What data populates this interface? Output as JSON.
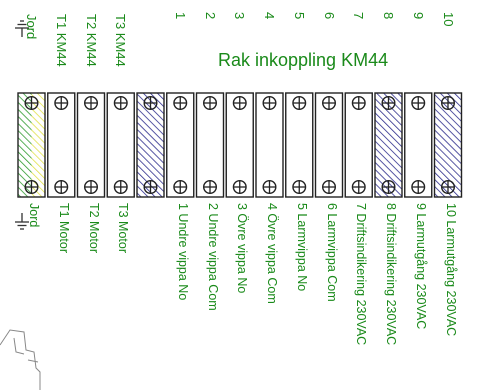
{
  "title": "Rak inkoppling KM44",
  "colors": {
    "text": "#1a8a1a",
    "outline": "#222222",
    "hatch_blue": "#2c2c8c",
    "hatch_green": "#2e9a2e",
    "hatch_yellow": "#e2e24a",
    "ground": "#333333"
  },
  "terminals": [
    {
      "top": "Jord",
      "bottom": "Jord",
      "ground": true,
      "fill": "green-yellow"
    },
    {
      "top": "T1 KM44",
      "bottom": "T1 Motor",
      "fill": "none"
    },
    {
      "top": "T2 KM44",
      "bottom": "T2 Motor",
      "fill": "none"
    },
    {
      "top": "T3 KM44",
      "bottom": "T3 Motor",
      "fill": "none"
    },
    {
      "top": "",
      "bottom": "",
      "fill": "blue"
    },
    {
      "top": "1",
      "bottom": "1 Undre vippa No",
      "fill": "none"
    },
    {
      "top": "2",
      "bottom": "2 Undre vippa Com",
      "fill": "none"
    },
    {
      "top": "3",
      "bottom": "3 Övre vippa No",
      "fill": "none"
    },
    {
      "top": "4",
      "bottom": "4 Övre vippa Com",
      "fill": "none"
    },
    {
      "top": "5",
      "bottom": "5 Larmvippa No",
      "fill": "none"
    },
    {
      "top": "6",
      "bottom": "6 Larmvippa Com",
      "fill": "none"
    },
    {
      "top": "7",
      "bottom": "7 Driftsindikering 230VAC",
      "fill": "none"
    },
    {
      "top": "8",
      "bottom": "8 Driftsindikering 230VAC",
      "fill": "blue"
    },
    {
      "top": "9",
      "bottom": "9  Larmutgång 230VAC",
      "fill": "none"
    },
    {
      "top": "10",
      "bottom": "10 Larmutgång 230VAC",
      "fill": "blue"
    }
  ]
}
